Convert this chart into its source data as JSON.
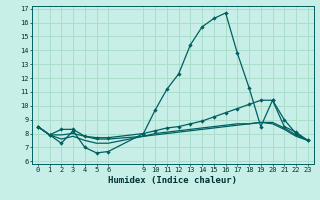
{
  "title": "",
  "xlabel": "Humidex (Indice chaleur)",
  "background_color": "#c8eee8",
  "grid_color": "#aaddcc",
  "line_color": "#006060",
  "xlim": [
    -0.5,
    23.5
  ],
  "ylim": [
    5.8,
    17.2
  ],
  "xticks": [
    0,
    1,
    2,
    3,
    4,
    5,
    6,
    9,
    10,
    11,
    12,
    13,
    14,
    15,
    16,
    17,
    18,
    19,
    20,
    21,
    22,
    23
  ],
  "yticks": [
    6,
    7,
    8,
    9,
    10,
    11,
    12,
    13,
    14,
    15,
    16,
    17
  ],
  "line1_x": [
    0,
    1,
    2,
    3,
    4,
    5,
    6,
    9,
    10,
    11,
    12,
    13,
    14,
    15,
    16,
    17,
    18,
    19,
    20,
    21,
    22,
    23
  ],
  "line1_y": [
    8.5,
    7.9,
    7.3,
    8.2,
    7.0,
    6.6,
    6.7,
    8.0,
    9.7,
    11.2,
    12.3,
    14.4,
    15.7,
    16.3,
    16.7,
    13.8,
    11.3,
    8.5,
    10.4,
    8.5,
    8.1,
    7.5
  ],
  "line2_x": [
    0,
    1,
    2,
    3,
    4,
    5,
    6,
    9,
    10,
    11,
    12,
    13,
    14,
    15,
    16,
    17,
    18,
    19,
    20,
    21,
    22,
    23
  ],
  "line2_y": [
    8.5,
    7.9,
    8.3,
    8.3,
    7.8,
    7.7,
    7.7,
    8.0,
    8.2,
    8.4,
    8.5,
    8.7,
    8.9,
    9.2,
    9.5,
    9.8,
    10.1,
    10.4,
    10.4,
    9.0,
    8.0,
    7.5
  ],
  "line3_x": [
    0,
    1,
    2,
    3,
    4,
    5,
    6,
    9,
    10,
    11,
    12,
    13,
    14,
    15,
    16,
    17,
    18,
    19,
    20,
    21,
    22,
    23
  ],
  "line3_y": [
    8.5,
    7.9,
    7.9,
    8.0,
    7.8,
    7.6,
    7.6,
    7.8,
    7.9,
    8.0,
    8.1,
    8.2,
    8.3,
    8.4,
    8.5,
    8.6,
    8.7,
    8.8,
    8.8,
    8.4,
    7.9,
    7.5
  ],
  "line4_x": [
    0,
    1,
    2,
    3,
    4,
    5,
    6,
    9,
    10,
    11,
    12,
    13,
    14,
    15,
    16,
    17,
    18,
    19,
    20,
    21,
    22,
    23
  ],
  "line4_y": [
    8.5,
    7.9,
    7.6,
    7.8,
    7.5,
    7.3,
    7.3,
    7.8,
    8.0,
    8.1,
    8.2,
    8.3,
    8.4,
    8.5,
    8.6,
    8.7,
    8.7,
    8.8,
    8.7,
    8.3,
    7.8,
    7.5
  ],
  "tick_fontsize": 5.0,
  "xlabel_fontsize": 6.5
}
